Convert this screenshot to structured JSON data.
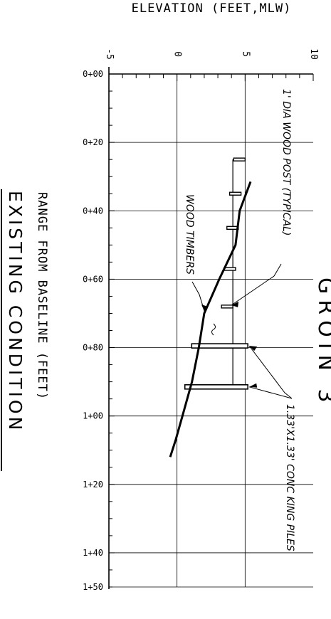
{
  "header": {
    "axis_title": "ELEVATION (FEET,MLW)",
    "clipped_title": "GROIN 3"
  },
  "section": {
    "range_label": "RANGE FROM BASELINE (FEET)",
    "caption": "EXISTING CONDITION"
  },
  "annotations": {
    "post_note": "1' DIA WOOD POST (TYPICAL)",
    "timber_note": "WOOD TIMBERS",
    "pile_note": "1.33'X1.33' CONC KING PILES"
  },
  "chart_data": {
    "type": "line",
    "title": "",
    "xlabel": "RANGE FROM BASELINE (FEET)",
    "ylabel": "ELEVATION (FEET,MLW)",
    "x_range": [
      0,
      150
    ],
    "y_range": [
      -5,
      10
    ],
    "x_ticks": [
      {
        "value": 0,
        "label": "0+00"
      },
      {
        "value": 20,
        "label": "0+20"
      },
      {
        "value": 40,
        "label": "0+40"
      },
      {
        "value": 60,
        "label": "0+60"
      },
      {
        "value": 80,
        "label": "0+80"
      },
      {
        "value": 100,
        "label": "1+00"
      },
      {
        "value": 120,
        "label": "1+20"
      },
      {
        "value": 140,
        "label": "1+40"
      },
      {
        "value": 150,
        "label": "1+50"
      }
    ],
    "y_ticks": [
      {
        "value": -5,
        "label": "-5"
      },
      {
        "value": 0,
        "label": "0"
      },
      {
        "value": 5,
        "label": "5"
      },
      {
        "value": 10,
        "label": "10"
      }
    ],
    "grid": true,
    "series": [
      {
        "name": "",
        "x": [
          31.5,
          40,
          50,
          60,
          70,
          80,
          90,
          100,
          107,
          112
        ],
        "y": [
          5.4,
          4.6,
          4.3,
          3.1,
          2.0,
          1.6,
          1.1,
          0.4,
          -0.1,
          -0.5
        ]
      }
    ],
    "posts": [
      {
        "x": 25,
        "top": 5.0
      },
      {
        "x": 35,
        "top": 4.7
      },
      {
        "x": 45,
        "top": 4.5
      },
      {
        "x": 57,
        "top": 4.3
      },
      {
        "x": 68,
        "top": 4.1
      }
    ],
    "piles": [
      {
        "x": 79.5,
        "top": 5.2
      },
      {
        "x": 91.5,
        "top": 5.2
      }
    ],
    "timber_elevation": 4.1,
    "timber_extent": [
      25,
      92
    ]
  }
}
